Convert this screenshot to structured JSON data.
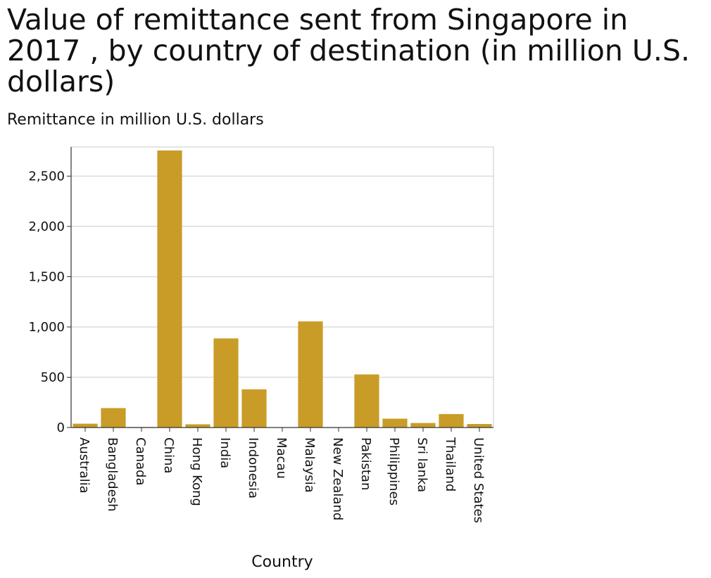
{
  "chart_data": {
    "type": "bar",
    "title": "Value of remittance sent from Singapore in 2017 , by country of destination (in million U.S. dollars)",
    "ylabel": "Remittance in million U.S. dollars",
    "xlabel": "Country",
    "categories": [
      "Australia",
      "Bangladesh",
      "Canada",
      "China",
      "Hong Kong",
      "India",
      "Indonesia",
      "Macau",
      "Malaysia",
      "New Zealand",
      "Pakistan",
      "Philippines",
      "Sri lanka",
      "Thailand",
      "United States"
    ],
    "values": [
      38,
      193,
      5,
      2755,
      32,
      886,
      380,
      3,
      1055,
      2,
      528,
      88,
      45,
      134,
      35
    ],
    "ylim": [
      0,
      2790
    ],
    "yticks": [
      "0",
      "500",
      "1,000",
      "1,500",
      "2,000",
      "2,500"
    ],
    "ytick_values": [
      0,
      500,
      1000,
      1500,
      2000,
      2500
    ],
    "grid": true,
    "bar_color": "#c99c28",
    "grid_color": "#dcdcdc"
  }
}
